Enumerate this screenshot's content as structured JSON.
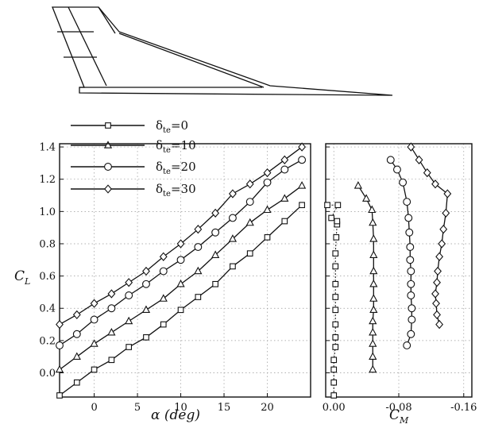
{
  "chart_data": {
    "type": "line",
    "lift_panel": {
      "x": [
        -4,
        -2,
        0,
        2,
        4,
        6,
        8,
        10,
        12,
        14,
        16,
        18,
        20,
        22,
        24
      ],
      "xlabel_symbol": "α",
      "xlabel_units": "(deg)",
      "ylabel": "C",
      "ylabel_sub": "L",
      "xlim": [
        -4,
        25
      ],
      "ylim": [
        -0.15,
        1.42
      ],
      "x_ticks": [
        "0",
        "5",
        "10",
        "15",
        "20"
      ],
      "y_ticks": [
        "0.0",
        "0.2",
        "0.4",
        "0.6",
        "0.8",
        "1.0",
        "1.2",
        "1.4"
      ],
      "grid": true
    },
    "moment_panel": {
      "xlabel": "C",
      "xlabel_sub": "M",
      "xlim": [
        0.01,
        -0.17
      ],
      "x_ticks": [
        "0.00",
        "-0.08",
        "-0.16"
      ],
      "grid": true
    },
    "legend_placement": "top-left",
    "series": [
      {
        "name": "δte=0",
        "legend_main": "δ",
        "legend_sub": "te",
        "legend_value": "=0",
        "marker": "square",
        "CL": [
          -0.14,
          -0.06,
          0.02,
          0.08,
          0.16,
          0.22,
          0.3,
          0.39,
          0.47,
          0.55,
          0.66,
          0.74,
          0.84,
          0.94,
          1.04
        ],
        "CM": [
          0.0,
          0.0,
          0.0,
          0.0,
          -0.002,
          -0.002,
          -0.002,
          -0.002,
          -0.002,
          -0.002,
          -0.002,
          -0.002,
          -0.003,
          -0.004,
          -0.005
        ],
        "CM_extra": [
          {
            "CL": 0.92,
            "CM": -0.004
          },
          {
            "CL": 0.96,
            "CM": 0.003
          },
          {
            "CL": 1.04,
            "CM": 0.008
          }
        ]
      },
      {
        "name": "δte=10",
        "legend_main": "δ",
        "legend_sub": "te",
        "legend_value": "=10",
        "marker": "triangle",
        "CL": [
          0.02,
          0.1,
          0.18,
          0.25,
          0.32,
          0.39,
          0.46,
          0.55,
          0.63,
          0.73,
          0.83,
          0.93,
          1.01,
          1.08,
          1.16
        ],
        "CM": [
          -0.048,
          -0.048,
          -0.048,
          -0.048,
          -0.048,
          -0.049,
          -0.049,
          -0.049,
          -0.049,
          -0.049,
          -0.049,
          -0.048,
          -0.047,
          -0.04,
          -0.03
        ]
      },
      {
        "name": "δte=20",
        "legend_main": "δ",
        "legend_sub": "te",
        "legend_value": "=20",
        "marker": "circle",
        "CL": [
          0.17,
          0.24,
          0.33,
          0.4,
          0.48,
          0.55,
          0.63,
          0.7,
          0.78,
          0.87,
          0.96,
          1.06,
          1.18,
          1.26,
          1.32
        ],
        "CM": [
          -0.09,
          -0.095,
          -0.096,
          -0.096,
          -0.095,
          -0.095,
          -0.095,
          -0.094,
          -0.094,
          -0.093,
          -0.092,
          -0.09,
          -0.085,
          -0.078,
          -0.07
        ]
      },
      {
        "name": "δte=30",
        "legend_main": "δ",
        "legend_sub": "te",
        "legend_value": "=30",
        "marker": "diamond",
        "CL": [
          0.3,
          0.36,
          0.43,
          0.49,
          0.56,
          0.63,
          0.72,
          0.8,
          0.89,
          0.99,
          1.11,
          1.17,
          1.24,
          1.32,
          1.4
        ],
        "CM": [
          -0.13,
          -0.127,
          -0.126,
          -0.125,
          -0.127,
          -0.128,
          -0.13,
          -0.133,
          -0.135,
          -0.138,
          -0.14,
          -0.125,
          -0.115,
          -0.105,
          -0.095
        ]
      }
    ]
  }
}
